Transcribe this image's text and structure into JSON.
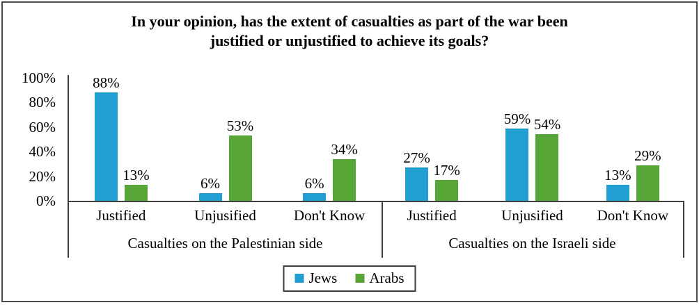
{
  "chart_data": {
    "type": "bar",
    "title": "In your opinion, has the extent of casualties as part of the war been justified or unjustified to achieve its goals?",
    "title_lines": [
      "In your opinion, has the extent of casualties as part of the war been",
      "justified or unjustified to achieve its goals?"
    ],
    "ylabel": "",
    "xlabel": "",
    "ylim": [
      0,
      100
    ],
    "grid": false,
    "y_ticks": [
      {
        "label": "100%",
        "value": 100
      },
      {
        "label": "80%",
        "value": 80
      },
      {
        "label": "60%",
        "value": 60
      },
      {
        "label": "40%",
        "value": 40
      },
      {
        "label": "20%",
        "value": 20
      },
      {
        "label": "0%",
        "value": 0
      }
    ],
    "legend_position": "bottom",
    "series": [
      {
        "name": "Jews",
        "color": "#219fd3"
      },
      {
        "name": "Arabs",
        "color": "#58a637"
      }
    ],
    "groups": [
      {
        "label": "Casualties on the Palestinian side",
        "categories": [
          {
            "label": "Justified",
            "values": [
              88,
              13
            ],
            "value_labels": [
              "88%",
              "13%"
            ]
          },
          {
            "label": "Unjusified",
            "values": [
              6,
              53
            ],
            "value_labels": [
              "6%",
              "53%"
            ]
          },
          {
            "label": "Don't Know",
            "values": [
              6,
              34
            ],
            "value_labels": [
              "6%",
              "34%"
            ]
          }
        ]
      },
      {
        "label": "Casualties on the Israeli side",
        "categories": [
          {
            "label": "Justified",
            "values": [
              27,
              17
            ],
            "value_labels": [
              "27%",
              "17%"
            ]
          },
          {
            "label": "Unjusified",
            "values": [
              59,
              54
            ],
            "value_labels": [
              "59%",
              "54%"
            ]
          },
          {
            "label": "Don't Know",
            "values": [
              13,
              29
            ],
            "value_labels": [
              "13%",
              "29%"
            ]
          }
        ]
      }
    ]
  }
}
